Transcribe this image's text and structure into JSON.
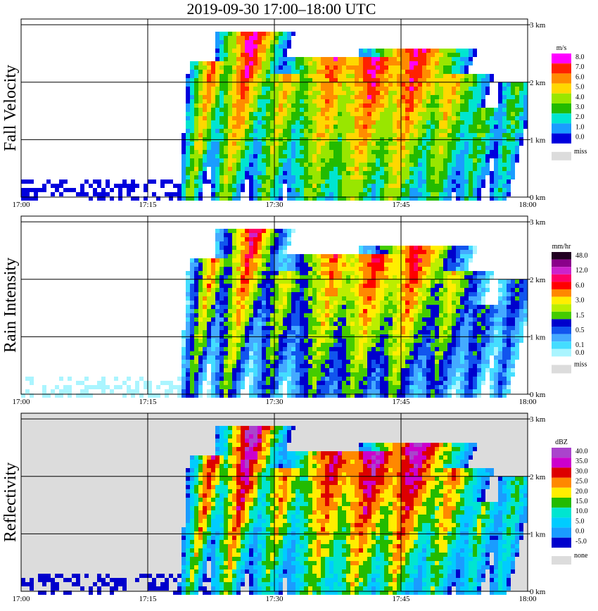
{
  "title": "2019-09-30   17:00–18:00 UTC",
  "colors": {
    "grid": "#000000",
    "background": "#ffffff",
    "missing": "#dcdcdc"
  },
  "chart_data": [
    {
      "type": "heatmap",
      "title": "Fall Velocity",
      "ylabel": "Fall Velocity",
      "x_ticks": [
        "17:00",
        "17:15",
        "17:30",
        "17:45",
        "18:00"
      ],
      "y_ticks": [
        "0 km",
        "1 km",
        "2 km",
        "3 km"
      ],
      "ylim": [
        0,
        3.1
      ],
      "grid": true,
      "colorbar": {
        "unit": "m/s",
        "levels": [
          {
            "label": "8.0",
            "color": "#ff00ff"
          },
          {
            "label": "7.0",
            "color": "#ff2200"
          },
          {
            "label": "6.0",
            "color": "#ff8c00"
          },
          {
            "label": "5.0",
            "color": "#ffd800"
          },
          {
            "label": "4.0",
            "color": "#99e600"
          },
          {
            "label": "3.0",
            "color": "#22bb00"
          },
          {
            "label": "2.0",
            "color": "#00e5d0"
          },
          {
            "label": "1.0",
            "color": "#1a9cff"
          },
          {
            "label": "0.0",
            "color": "#0000dd"
          }
        ],
        "missing_label": "miss"
      }
    },
    {
      "type": "heatmap",
      "title": "Rain Intensity",
      "ylabel": "Rain Intensity",
      "x_ticks": [
        "17:00",
        "17:15",
        "17:30",
        "17:45",
        "18:00"
      ],
      "y_ticks": [
        "0 km",
        "1 km",
        "2 km",
        "3 km"
      ],
      "ylim": [
        0,
        3.1
      ],
      "grid": true,
      "colorbar": {
        "unit": "mm/hr",
        "levels": [
          {
            "label": "48.0",
            "color": "#220022"
          },
          {
            "label": "",
            "color": "#8a008a"
          },
          {
            "label": "12.0",
            "color": "#cc22cc"
          },
          {
            "label": "",
            "color": "#ff0066"
          },
          {
            "label": "6.0",
            "color": "#ff0000"
          },
          {
            "label": "",
            "color": "#ff8800"
          },
          {
            "label": "3.0",
            "color": "#ffee00"
          },
          {
            "label": "",
            "color": "#bbee00"
          },
          {
            "label": "1.5",
            "color": "#44cc00"
          },
          {
            "label": "",
            "color": "#0000cc"
          },
          {
            "label": "0.5",
            "color": "#1155ee"
          },
          {
            "label": "",
            "color": "#44aaff"
          },
          {
            "label": "0.1",
            "color": "#44ddff"
          },
          {
            "label": "0.0",
            "color": "#aaf5ff"
          }
        ],
        "missing_label": "miss"
      }
    },
    {
      "type": "heatmap",
      "title": "Reflectivity",
      "ylabel": "Reflectivity",
      "x_ticks": [
        "17:00",
        "17:15",
        "17:30",
        "17:45",
        "18:00"
      ],
      "y_ticks": [
        "0 km",
        "1 km",
        "2 km",
        "3 km"
      ],
      "ylim": [
        0,
        3.1
      ],
      "grid": true,
      "colorbar": {
        "unit": "dBZ",
        "levels": [
          {
            "label": "40.0",
            "color": "#aa44cc"
          },
          {
            "label": "35.0",
            "color": "#cc00cc"
          },
          {
            "label": "30.0",
            "color": "#dd0000"
          },
          {
            "label": "25.0",
            "color": "#ff8800"
          },
          {
            "label": "20.0",
            "color": "#ffee00"
          },
          {
            "label": "15.0",
            "color": "#22bb00"
          },
          {
            "label": "10.0",
            "color": "#00e5d0"
          },
          {
            "label": "5.0",
            "color": "#00ccff"
          },
          {
            "label": "0.0",
            "color": "#1a9cff"
          },
          {
            "label": "-5.0",
            "color": "#0000cc"
          }
        ],
        "missing_label": "none"
      }
    }
  ]
}
